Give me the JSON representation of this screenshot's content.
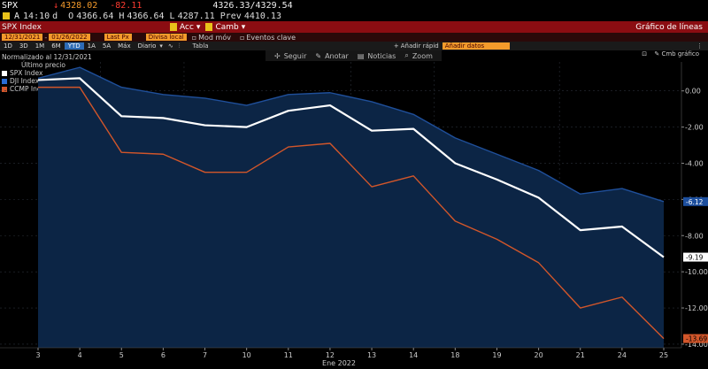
{
  "header": {
    "ticker": "SPX",
    "last": "4328.02",
    "change": "-82.11",
    "bid_ask": "4326.33/4329.54",
    "time": "14:10",
    "time_suffix": "d",
    "open_label": "O",
    "open": "4366.64",
    "high_label": "H",
    "high": "4366.64",
    "low_label": "L",
    "low": "4287.11",
    "prev_label": "Prev",
    "prev": "4410.13"
  },
  "menu": {
    "security": "SPX Index",
    "acc": "Acc",
    "camb": "Camb",
    "title": "Gráfico de líneas"
  },
  "fields": {
    "start_date": "12/31/2021",
    "end_date": "01/26/2022",
    "price_field": "Last Px",
    "currency": "Divisa local",
    "mode": "Mod móv",
    "events": "Eventos clave",
    "add_quick": "Añadir rápid",
    "add_data": "Añadir datos"
  },
  "periods": [
    "1D",
    "3D",
    "1M",
    "6M",
    "YTD",
    "1A",
    "5A",
    "Máx",
    "Diario"
  ],
  "selected_period": "YTD",
  "table_label": "Tabla",
  "toolbar": [
    "Seguir",
    "Anotar",
    "Noticias",
    "Zoom"
  ],
  "chart_settings": "Cmb gráfico",
  "legend": {
    "title": "Normalizado al 12/31/2021",
    "subtitle": "Último precio",
    "items": [
      {
        "label": "SPX Index",
        "value": "-9.19"
      },
      {
        "label": "DJI Index",
        "value": "-6.12"
      },
      {
        "label": "CCMP Index",
        "value": "-13.69"
      }
    ]
  },
  "colors": {
    "spx": "#ffffff",
    "dji": "#1f4f9a",
    "ccmp": "#d2562a",
    "fill": "#0c2545",
    "header_red": "#8b0d12",
    "orange": "#f39a2b"
  },
  "chart_data": {
    "type": "line",
    "xlabel": "Ene 2022",
    "x": [
      "3",
      "4",
      "5",
      "6",
      "7",
      "10",
      "11",
      "12",
      "13",
      "14",
      "18",
      "19",
      "20",
      "21",
      "24",
      "25"
    ],
    "ylim": [
      -14.2,
      1.6
    ],
    "yticks": [
      "0.00",
      "-2.00",
      "-4.00",
      "-6.00",
      "-8.00",
      "-10.00",
      "-12.00",
      "-14.00"
    ],
    "ytick_values": [
      0,
      -2,
      -4,
      -6,
      -8,
      -10,
      -12,
      -14
    ],
    "series": [
      {
        "name": "SPX Index",
        "values": [
          0.6,
          0.7,
          -1.4,
          -1.5,
          -1.9,
          -2.0,
          -1.1,
          -0.8,
          -2.2,
          -2.1,
          -4.0,
          -4.9,
          -5.9,
          -7.7,
          -7.5,
          -9.19
        ]
      },
      {
        "name": "DJI Index",
        "values": [
          0.7,
          1.3,
          0.2,
          -0.2,
          -0.4,
          -0.8,
          -0.2,
          -0.1,
          -0.6,
          -1.3,
          -2.6,
          -3.5,
          -4.4,
          -5.7,
          -5.4,
          -6.12
        ]
      },
      {
        "name": "CCMP Index",
        "values": [
          0.2,
          0.2,
          -3.4,
          -3.5,
          -4.5,
          -4.5,
          -3.1,
          -2.9,
          -5.3,
          -4.7,
          -7.2,
          -8.2,
          -9.5,
          -12.0,
          -11.4,
          -13.69
        ]
      }
    ],
    "last_values": [
      "-6.12",
      "-9.19",
      "-13.69"
    ]
  }
}
